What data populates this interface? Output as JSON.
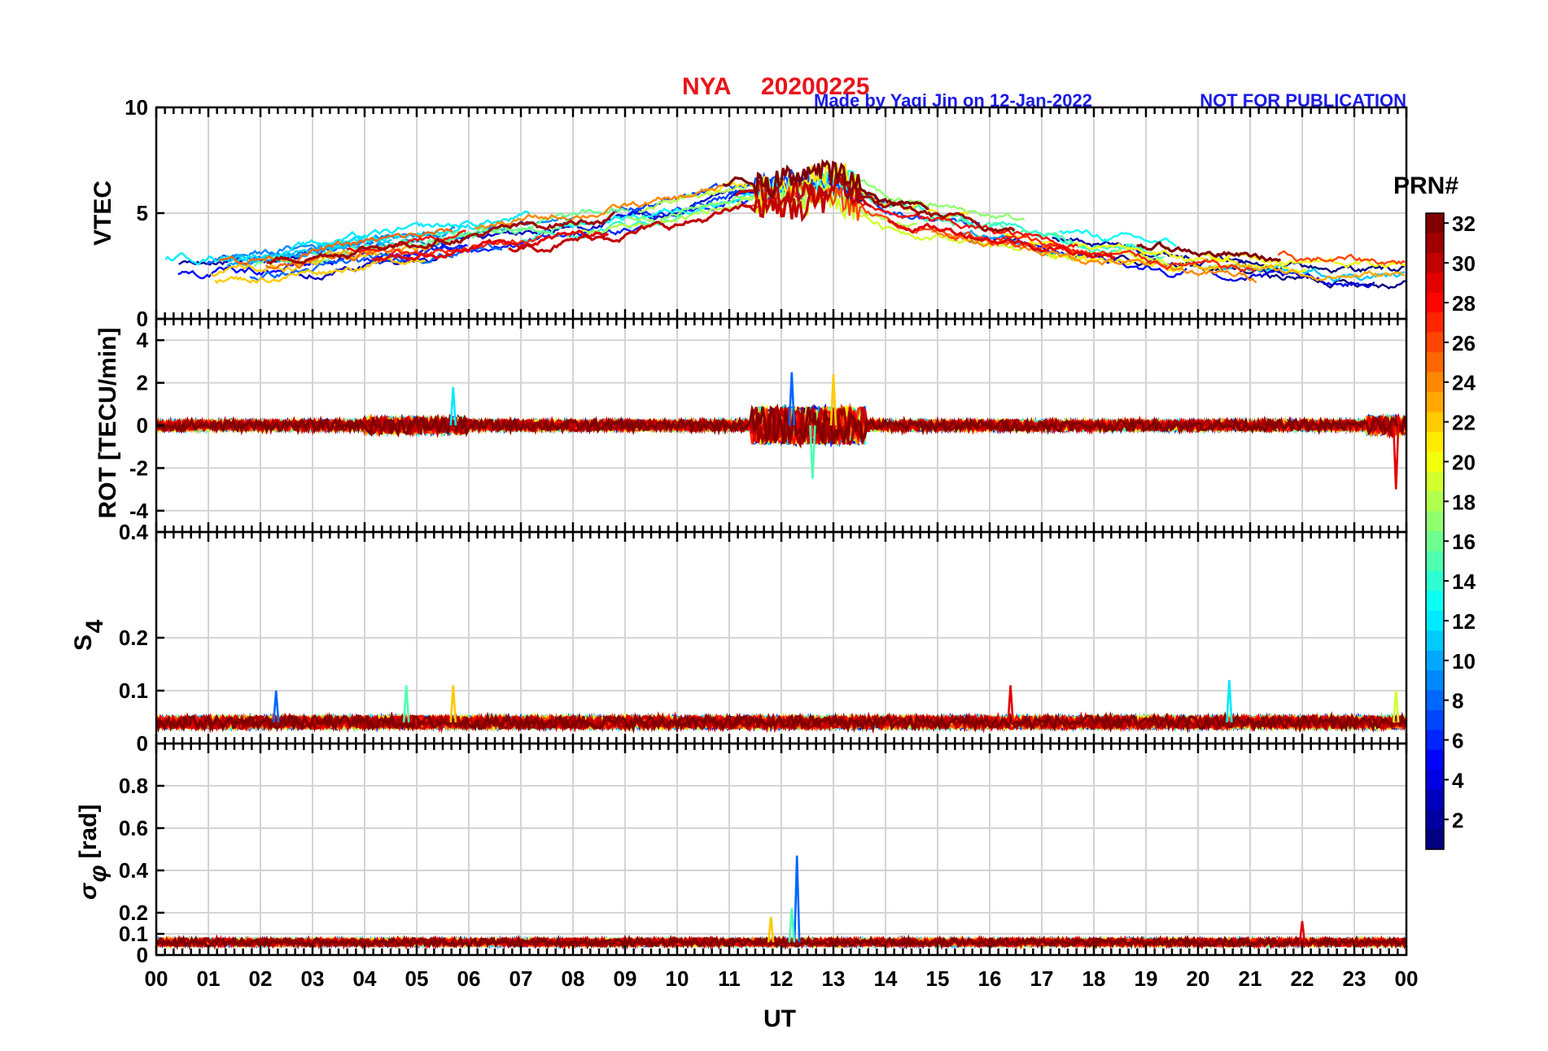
{
  "header": {
    "station": "NYA",
    "date": "20200225",
    "credit": "Made by Yaqi Jin on 12-Jan-2022",
    "notice": "NOT FOR PUBLICATION"
  },
  "colors": {
    "title": "#e8141c",
    "credit": "#1a1ae6",
    "colormap": "jet"
  },
  "chart_data": [
    {
      "type": "line",
      "panel": "vtec",
      "ylabel": "VTEC",
      "ylim": [
        0,
        10
      ],
      "yticks": [
        0,
        5,
        10
      ],
      "x_range_hours": [
        0,
        24
      ],
      "grid": true,
      "series_note": "one line per PRN 1-32, colored by PRN",
      "envelope_x": [
        0,
        2,
        4,
        6,
        8,
        10,
        11,
        12,
        13,
        14,
        16,
        18,
        20,
        22,
        24
      ],
      "envelope_y": [
        2.3,
        2.5,
        3.2,
        3.8,
        4.4,
        5.1,
        5.7,
        6.0,
        6.3,
        5.0,
        4.2,
        3.4,
        2.8,
        2.3,
        2.2
      ]
    },
    {
      "type": "line",
      "panel": "rot",
      "ylabel": "ROT [TECU/min]",
      "ylim": [
        -5,
        5
      ],
      "yticks": [
        -4,
        -2,
        0,
        2,
        4
      ],
      "x_range_hours": [
        0,
        24
      ],
      "grid": true,
      "baseline": 0,
      "peaks": [
        {
          "x": 12.2,
          "y": 2.5
        },
        {
          "x": 12.6,
          "y": -2.5
        },
        {
          "x": 13.0,
          "y": 2.4
        },
        {
          "x": 23.8,
          "y": -3.0
        },
        {
          "x": 5.7,
          "y": 1.8
        }
      ]
    },
    {
      "type": "line",
      "panel": "s4",
      "ylabel": "S4",
      "ylim": [
        0,
        0.4
      ],
      "yticks": [
        0,
        0.1,
        0.2,
        0.4
      ],
      "x_range_hours": [
        0,
        24
      ],
      "grid": true,
      "baseline": 0.04,
      "peaks": [
        {
          "x": 2.3,
          "y": 0.1
        },
        {
          "x": 4.8,
          "y": 0.11
        },
        {
          "x": 5.7,
          "y": 0.11
        },
        {
          "x": 16.4,
          "y": 0.11
        },
        {
          "x": 20.6,
          "y": 0.12
        },
        {
          "x": 23.8,
          "y": 0.1
        }
      ]
    },
    {
      "type": "line",
      "panel": "sigma_phi",
      "ylabel": "σ",
      "ylabel_sub": "φ",
      "ylabel_unit": "[rad]",
      "ylim": [
        0,
        1
      ],
      "yticks": [
        0,
        0.1,
        0.2,
        0.4,
        0.6,
        0.8
      ],
      "x_range_hours": [
        0,
        24
      ],
      "grid": true,
      "baseline": 0.06,
      "peaks": [
        {
          "x": 12.3,
          "y": 0.47
        },
        {
          "x": 12.2,
          "y": 0.22
        },
        {
          "x": 11.8,
          "y": 0.18
        },
        {
          "x": 22.0,
          "y": 0.16
        }
      ]
    }
  ],
  "xaxis": {
    "label": "UT",
    "ticks": [
      "00",
      "01",
      "02",
      "03",
      "04",
      "05",
      "06",
      "07",
      "08",
      "09",
      "10",
      "11",
      "12",
      "13",
      "14",
      "15",
      "16",
      "17",
      "18",
      "19",
      "20",
      "21",
      "22",
      "23",
      "00"
    ]
  },
  "colorbar": {
    "label": "PRN#",
    "range": [
      1,
      32
    ],
    "ticks": [
      2,
      4,
      6,
      8,
      10,
      12,
      14,
      16,
      18,
      20,
      22,
      24,
      26,
      28,
      30,
      32
    ]
  }
}
